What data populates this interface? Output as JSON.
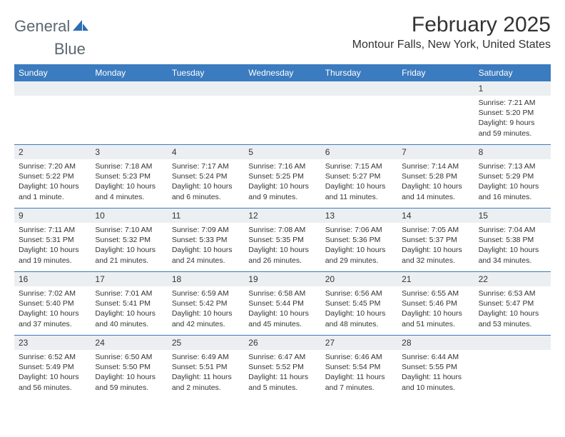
{
  "logo": {
    "text1": "General",
    "text2": "Blue"
  },
  "title": "February 2025",
  "location": "Montour Falls, New York, United States",
  "colors": {
    "header_bg": "#3b7bbf",
    "header_text": "#ffffff",
    "daynum_bg": "#eceff1",
    "text": "#333333",
    "logo_text": "#5b6770",
    "logo_accent": "#2b6fb3"
  },
  "day_headers": [
    "Sunday",
    "Monday",
    "Tuesday",
    "Wednesday",
    "Thursday",
    "Friday",
    "Saturday"
  ],
  "weeks": [
    [
      {
        "n": "",
        "sunrise": "",
        "sunset": "",
        "daylight": ""
      },
      {
        "n": "",
        "sunrise": "",
        "sunset": "",
        "daylight": ""
      },
      {
        "n": "",
        "sunrise": "",
        "sunset": "",
        "daylight": ""
      },
      {
        "n": "",
        "sunrise": "",
        "sunset": "",
        "daylight": ""
      },
      {
        "n": "",
        "sunrise": "",
        "sunset": "",
        "daylight": ""
      },
      {
        "n": "",
        "sunrise": "",
        "sunset": "",
        "daylight": ""
      },
      {
        "n": "1",
        "sunrise": "Sunrise: 7:21 AM",
        "sunset": "Sunset: 5:20 PM",
        "daylight": "Daylight: 9 hours and 59 minutes."
      }
    ],
    [
      {
        "n": "2",
        "sunrise": "Sunrise: 7:20 AM",
        "sunset": "Sunset: 5:22 PM",
        "daylight": "Daylight: 10 hours and 1 minute."
      },
      {
        "n": "3",
        "sunrise": "Sunrise: 7:18 AM",
        "sunset": "Sunset: 5:23 PM",
        "daylight": "Daylight: 10 hours and 4 minutes."
      },
      {
        "n": "4",
        "sunrise": "Sunrise: 7:17 AM",
        "sunset": "Sunset: 5:24 PM",
        "daylight": "Daylight: 10 hours and 6 minutes."
      },
      {
        "n": "5",
        "sunrise": "Sunrise: 7:16 AM",
        "sunset": "Sunset: 5:25 PM",
        "daylight": "Daylight: 10 hours and 9 minutes."
      },
      {
        "n": "6",
        "sunrise": "Sunrise: 7:15 AM",
        "sunset": "Sunset: 5:27 PM",
        "daylight": "Daylight: 10 hours and 11 minutes."
      },
      {
        "n": "7",
        "sunrise": "Sunrise: 7:14 AM",
        "sunset": "Sunset: 5:28 PM",
        "daylight": "Daylight: 10 hours and 14 minutes."
      },
      {
        "n": "8",
        "sunrise": "Sunrise: 7:13 AM",
        "sunset": "Sunset: 5:29 PM",
        "daylight": "Daylight: 10 hours and 16 minutes."
      }
    ],
    [
      {
        "n": "9",
        "sunrise": "Sunrise: 7:11 AM",
        "sunset": "Sunset: 5:31 PM",
        "daylight": "Daylight: 10 hours and 19 minutes."
      },
      {
        "n": "10",
        "sunrise": "Sunrise: 7:10 AM",
        "sunset": "Sunset: 5:32 PM",
        "daylight": "Daylight: 10 hours and 21 minutes."
      },
      {
        "n": "11",
        "sunrise": "Sunrise: 7:09 AM",
        "sunset": "Sunset: 5:33 PM",
        "daylight": "Daylight: 10 hours and 24 minutes."
      },
      {
        "n": "12",
        "sunrise": "Sunrise: 7:08 AM",
        "sunset": "Sunset: 5:35 PM",
        "daylight": "Daylight: 10 hours and 26 minutes."
      },
      {
        "n": "13",
        "sunrise": "Sunrise: 7:06 AM",
        "sunset": "Sunset: 5:36 PM",
        "daylight": "Daylight: 10 hours and 29 minutes."
      },
      {
        "n": "14",
        "sunrise": "Sunrise: 7:05 AM",
        "sunset": "Sunset: 5:37 PM",
        "daylight": "Daylight: 10 hours and 32 minutes."
      },
      {
        "n": "15",
        "sunrise": "Sunrise: 7:04 AM",
        "sunset": "Sunset: 5:38 PM",
        "daylight": "Daylight: 10 hours and 34 minutes."
      }
    ],
    [
      {
        "n": "16",
        "sunrise": "Sunrise: 7:02 AM",
        "sunset": "Sunset: 5:40 PM",
        "daylight": "Daylight: 10 hours and 37 minutes."
      },
      {
        "n": "17",
        "sunrise": "Sunrise: 7:01 AM",
        "sunset": "Sunset: 5:41 PM",
        "daylight": "Daylight: 10 hours and 40 minutes."
      },
      {
        "n": "18",
        "sunrise": "Sunrise: 6:59 AM",
        "sunset": "Sunset: 5:42 PM",
        "daylight": "Daylight: 10 hours and 42 minutes."
      },
      {
        "n": "19",
        "sunrise": "Sunrise: 6:58 AM",
        "sunset": "Sunset: 5:44 PM",
        "daylight": "Daylight: 10 hours and 45 minutes."
      },
      {
        "n": "20",
        "sunrise": "Sunrise: 6:56 AM",
        "sunset": "Sunset: 5:45 PM",
        "daylight": "Daylight: 10 hours and 48 minutes."
      },
      {
        "n": "21",
        "sunrise": "Sunrise: 6:55 AM",
        "sunset": "Sunset: 5:46 PM",
        "daylight": "Daylight: 10 hours and 51 minutes."
      },
      {
        "n": "22",
        "sunrise": "Sunrise: 6:53 AM",
        "sunset": "Sunset: 5:47 PM",
        "daylight": "Daylight: 10 hours and 53 minutes."
      }
    ],
    [
      {
        "n": "23",
        "sunrise": "Sunrise: 6:52 AM",
        "sunset": "Sunset: 5:49 PM",
        "daylight": "Daylight: 10 hours and 56 minutes."
      },
      {
        "n": "24",
        "sunrise": "Sunrise: 6:50 AM",
        "sunset": "Sunset: 5:50 PM",
        "daylight": "Daylight: 10 hours and 59 minutes."
      },
      {
        "n": "25",
        "sunrise": "Sunrise: 6:49 AM",
        "sunset": "Sunset: 5:51 PM",
        "daylight": "Daylight: 11 hours and 2 minutes."
      },
      {
        "n": "26",
        "sunrise": "Sunrise: 6:47 AM",
        "sunset": "Sunset: 5:52 PM",
        "daylight": "Daylight: 11 hours and 5 minutes."
      },
      {
        "n": "27",
        "sunrise": "Sunrise: 6:46 AM",
        "sunset": "Sunset: 5:54 PM",
        "daylight": "Daylight: 11 hours and 7 minutes."
      },
      {
        "n": "28",
        "sunrise": "Sunrise: 6:44 AM",
        "sunset": "Sunset: 5:55 PM",
        "daylight": "Daylight: 11 hours and 10 minutes."
      },
      {
        "n": "",
        "sunrise": "",
        "sunset": "",
        "daylight": ""
      }
    ]
  ]
}
